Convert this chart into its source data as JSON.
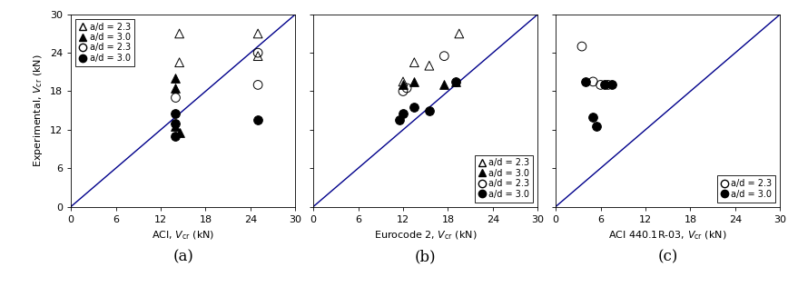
{
  "line_color": "#00008B",
  "panels": [
    {
      "xlabel": "ACI, V_cr (kN)",
      "label": "(a)",
      "xlim": [
        0,
        30
      ],
      "ylim": [
        0,
        30
      ],
      "xticks": [
        0,
        6,
        12,
        18,
        24,
        30
      ],
      "yticks": [
        0,
        6,
        12,
        18,
        24,
        30
      ],
      "show_ytick_labels": true,
      "legend_loc": "upper left",
      "legend_entries": [
        {
          "marker": "^",
          "filled": false,
          "label": "a/d = 2.3"
        },
        {
          "marker": "^",
          "filled": true,
          "label": "a/d = 3.0"
        },
        {
          "marker": "o",
          "filled": false,
          "label": "a/d = 2.3"
        },
        {
          "marker": "o",
          "filled": true,
          "label": "a/d = 3.0"
        }
      ],
      "series": [
        {
          "marker": "^",
          "filled": false,
          "x": [
            14.5,
            14.5,
            25.0,
            25.0
          ],
          "y": [
            22.5,
            27.0,
            23.5,
            27.0
          ]
        },
        {
          "marker": "^",
          "filled": true,
          "x": [
            14.0,
            14.0,
            14.0,
            14.5
          ],
          "y": [
            18.5,
            20.0,
            12.5,
            11.5
          ]
        },
        {
          "marker": "o",
          "filled": false,
          "x": [
            14.0,
            25.0,
            25.0
          ],
          "y": [
            17.0,
            19.0,
            24.0
          ]
        },
        {
          "marker": "o",
          "filled": true,
          "x": [
            14.0,
            14.0,
            14.0,
            25.0
          ],
          "y": [
            14.5,
            13.0,
            11.0,
            13.5
          ]
        }
      ]
    },
    {
      "xlabel": "Eurocode 2, V_cr (kN)",
      "label": "(b)",
      "xlim": [
        0,
        30
      ],
      "ylim": [
        0,
        30
      ],
      "xticks": [
        0,
        6,
        12,
        18,
        24,
        30
      ],
      "yticks": [
        0,
        6,
        12,
        18,
        24,
        30
      ],
      "show_ytick_labels": false,
      "legend_loc": "lower right",
      "legend_entries": [
        {
          "marker": "^",
          "filled": false,
          "label": "a/d = 2.3"
        },
        {
          "marker": "^",
          "filled": true,
          "label": "a/d = 3.0"
        },
        {
          "marker": "o",
          "filled": false,
          "label": "a/d = 2.3"
        },
        {
          "marker": "o",
          "filled": true,
          "label": "a/d = 3.0"
        }
      ],
      "series": [
        {
          "marker": "^",
          "filled": false,
          "x": [
            12.0,
            13.5,
            15.5,
            19.5
          ],
          "y": [
            19.5,
            22.5,
            22.0,
            27.0
          ]
        },
        {
          "marker": "^",
          "filled": true,
          "x": [
            12.0,
            13.5,
            17.5,
            19.0
          ],
          "y": [
            19.0,
            19.5,
            19.0,
            19.5
          ]
        },
        {
          "marker": "o",
          "filled": false,
          "x": [
            12.0,
            12.5,
            17.5
          ],
          "y": [
            18.0,
            18.5,
            23.5
          ]
        },
        {
          "marker": "o",
          "filled": true,
          "x": [
            11.5,
            12.0,
            13.5,
            15.5,
            19.0
          ],
          "y": [
            13.5,
            14.5,
            15.5,
            15.0,
            19.5
          ]
        }
      ]
    },
    {
      "xlabel": "ACI 440.1R-03, V_cr (kN)",
      "label": "(c)",
      "xlim": [
        0,
        30
      ],
      "ylim": [
        0,
        30
      ],
      "xticks": [
        0,
        6,
        12,
        18,
        24,
        30
      ],
      "yticks": [
        0,
        6,
        12,
        18,
        24,
        30
      ],
      "show_ytick_labels": false,
      "legend_loc": "lower right",
      "legend_entries": [
        {
          "marker": "o",
          "filled": false,
          "label": "a/d = 2.3"
        },
        {
          "marker": "o",
          "filled": true,
          "label": "a/d = 3.0"
        }
      ],
      "series": [
        {
          "marker": "o",
          "filled": false,
          "x": [
            3.5,
            5.0,
            6.0,
            7.0
          ],
          "y": [
            25.0,
            19.5,
            19.0,
            19.0
          ]
        },
        {
          "marker": "o",
          "filled": true,
          "x": [
            4.0,
            5.0,
            5.5,
            6.5,
            7.5
          ],
          "y": [
            19.5,
            14.0,
            12.5,
            19.0,
            19.0
          ]
        }
      ]
    }
  ],
  "ylabel": "Experimental, V_cr (kN)",
  "marker_size": 7,
  "tick_fontsize": 8,
  "label_fontsize": 8,
  "panel_label_fontsize": 12
}
